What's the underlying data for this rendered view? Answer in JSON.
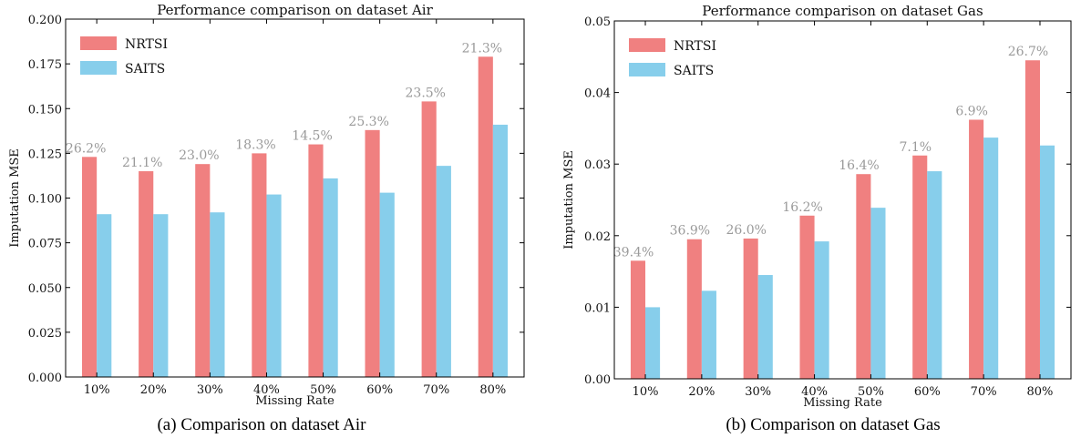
{
  "colors": {
    "nrtsi": "#F08080",
    "saits": "#87CEEB",
    "annotation": "#9a9a9a"
  },
  "chart_data": [
    {
      "type": "bar",
      "title": "Performance comparison on dataset Air",
      "caption": "(a) Comparison on dataset Air",
      "xlabel": "Missing Rate",
      "ylabel": "Imputation MSE",
      "ylim": [
        0,
        0.2
      ],
      "yticks": [
        "0.000",
        "0.025",
        "0.050",
        "0.075",
        "0.100",
        "0.125",
        "0.150",
        "0.175",
        "0.200"
      ],
      "categories": [
        "10%",
        "20%",
        "30%",
        "40%",
        "50%",
        "60%",
        "70%",
        "80%"
      ],
      "series": [
        {
          "name": "NRTSI",
          "values": [
            0.123,
            0.115,
            0.119,
            0.125,
            0.13,
            0.138,
            0.154,
            0.179
          ]
        },
        {
          "name": "SAITS",
          "values": [
            0.091,
            0.091,
            0.092,
            0.102,
            0.111,
            0.103,
            0.118,
            0.141
          ]
        }
      ],
      "annotations": [
        "26.2%",
        "21.1%",
        "23.0%",
        "18.3%",
        "14.5%",
        "25.3%",
        "23.5%",
        "21.3%"
      ],
      "legend": "top-left",
      "grid": false
    },
    {
      "type": "bar",
      "title": "Performance comparison on dataset Gas",
      "caption": "(b) Comparison on dataset Gas",
      "xlabel": "Missing Rate",
      "ylabel": "Imputation MSE",
      "ylim": [
        0,
        0.05
      ],
      "yticks": [
        "0.00",
        "0.01",
        "0.02",
        "0.03",
        "0.04",
        "0.05"
      ],
      "categories": [
        "10%",
        "20%",
        "30%",
        "40%",
        "50%",
        "60%",
        "70%",
        "80%"
      ],
      "series": [
        {
          "name": "NRTSI",
          "values": [
            0.0165,
            0.0195,
            0.0196,
            0.0228,
            0.0286,
            0.0312,
            0.0362,
            0.0445
          ]
        },
        {
          "name": "SAITS",
          "values": [
            0.01,
            0.0123,
            0.0145,
            0.0192,
            0.0239,
            0.029,
            0.0337,
            0.0326
          ]
        }
      ],
      "annotations": [
        "39.4%",
        "36.9%",
        "26.0%",
        "16.2%",
        "16.4%",
        "7.1%",
        "6.9%",
        "26.7%"
      ],
      "legend": "top-left",
      "grid": false
    }
  ]
}
